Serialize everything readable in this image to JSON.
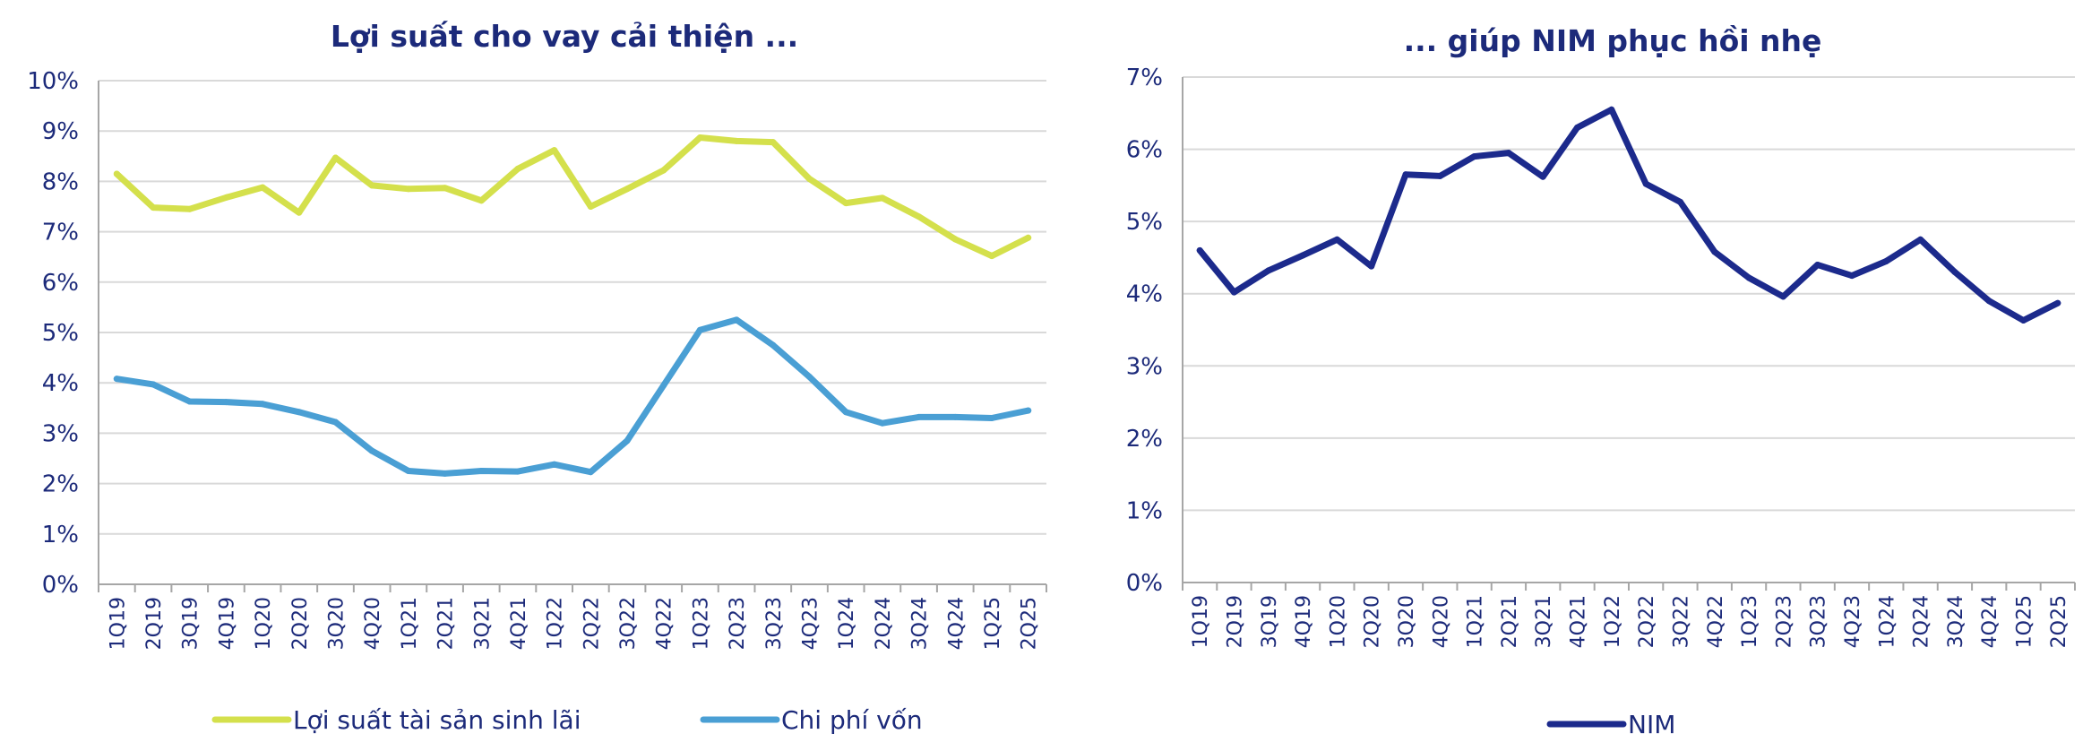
{
  "chart_data": [
    {
      "type": "line",
      "title": "Lợi suất cho vay cải thiện ...",
      "categories": [
        "1Q19",
        "2Q19",
        "3Q19",
        "4Q19",
        "1Q20",
        "2Q20",
        "3Q20",
        "4Q20",
        "1Q21",
        "2Q21",
        "3Q21",
        "4Q21",
        "1Q22",
        "2Q22",
        "3Q22",
        "4Q22",
        "1Q23",
        "2Q23",
        "3Q23",
        "4Q23",
        "1Q24",
        "2Q24",
        "3Q24",
        "4Q24",
        "1Q25",
        "2Q25"
      ],
      "yticks": [
        "0%",
        "1%",
        "2%",
        "3%",
        "4%",
        "5%",
        "6%",
        "7%",
        "8%",
        "9%",
        "10%"
      ],
      "ylim": [
        0,
        10
      ],
      "grid": true,
      "legend_position": "bottom",
      "series": [
        {
          "name": "Lợi suất tài sản sinh lãi",
          "color": "#d4e04c",
          "values": [
            8.15,
            7.48,
            7.45,
            7.68,
            7.88,
            7.38,
            8.47,
            7.92,
            7.85,
            7.87,
            7.62,
            8.25,
            8.62,
            7.5,
            7.85,
            8.22,
            8.87,
            8.8,
            8.78,
            8.05,
            7.57,
            7.67,
            7.3,
            6.85,
            6.52,
            6.88
          ]
        },
        {
          "name": "Chi phí vốn",
          "color": "#4a9fd4",
          "values": [
            4.08,
            3.97,
            3.63,
            3.62,
            3.58,
            3.42,
            3.22,
            2.65,
            2.25,
            2.2,
            2.25,
            2.24,
            2.38,
            2.23,
            2.85,
            3.95,
            5.05,
            5.25,
            4.75,
            4.12,
            3.42,
            3.2,
            3.32,
            3.32,
            3.3,
            3.45
          ]
        }
      ]
    },
    {
      "type": "line",
      "title": "... giúp NIM phục hồi nhẹ",
      "categories": [
        "1Q19",
        "2Q19",
        "3Q19",
        "4Q19",
        "1Q20",
        "2Q20",
        "3Q20",
        "4Q20",
        "1Q21",
        "2Q21",
        "3Q21",
        "4Q21",
        "1Q22",
        "2Q22",
        "3Q22",
        "4Q22",
        "1Q23",
        "2Q23",
        "3Q23",
        "4Q23",
        "1Q24",
        "2Q24",
        "3Q24",
        "4Q24",
        "1Q25",
        "2Q25"
      ],
      "yticks": [
        "0%",
        "1%",
        "2%",
        "3%",
        "4%",
        "5%",
        "6%",
        "7%"
      ],
      "ylim": [
        0,
        7
      ],
      "grid": true,
      "legend_position": "bottom",
      "series": [
        {
          "name": "NIM",
          "color": "#1c2a8c",
          "values": [
            4.6,
            4.02,
            4.32,
            4.53,
            4.75,
            4.38,
            5.65,
            5.63,
            5.9,
            5.95,
            5.62,
            6.3,
            6.55,
            5.52,
            5.27,
            4.58,
            4.22,
            3.96,
            4.4,
            4.25,
            4.45,
            4.75,
            4.3,
            3.9,
            3.63,
            3.87
          ]
        }
      ]
    }
  ]
}
